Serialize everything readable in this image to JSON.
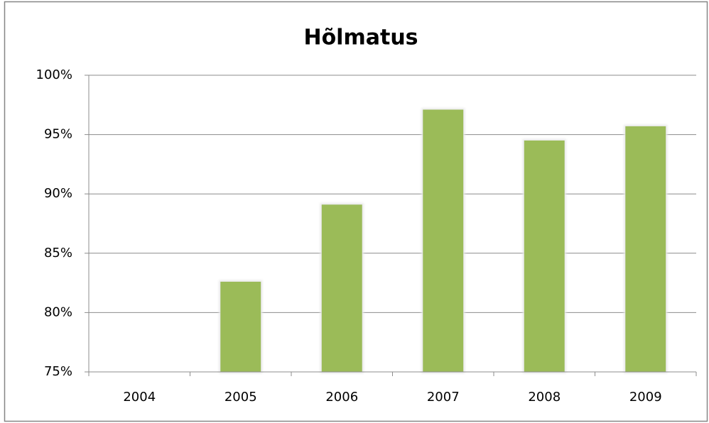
{
  "chart_data": {
    "type": "bar",
    "title": "Hõlmatus",
    "categories": [
      "2004",
      "2005",
      "2006",
      "2007",
      "2008",
      "2009"
    ],
    "values": [
      null,
      82.6,
      89.1,
      97.1,
      94.5,
      95.7
    ],
    "color": "#9bbb59",
    "ylim": [
      75,
      100
    ],
    "yticks": [
      {
        "value": 75,
        "label": "75%"
      },
      {
        "value": 80,
        "label": "80%"
      },
      {
        "value": 85,
        "label": "85%"
      },
      {
        "value": 90,
        "label": "90%"
      },
      {
        "value": 95,
        "label": "95%"
      },
      {
        "value": 100,
        "label": "100%"
      }
    ],
    "grid": true
  }
}
